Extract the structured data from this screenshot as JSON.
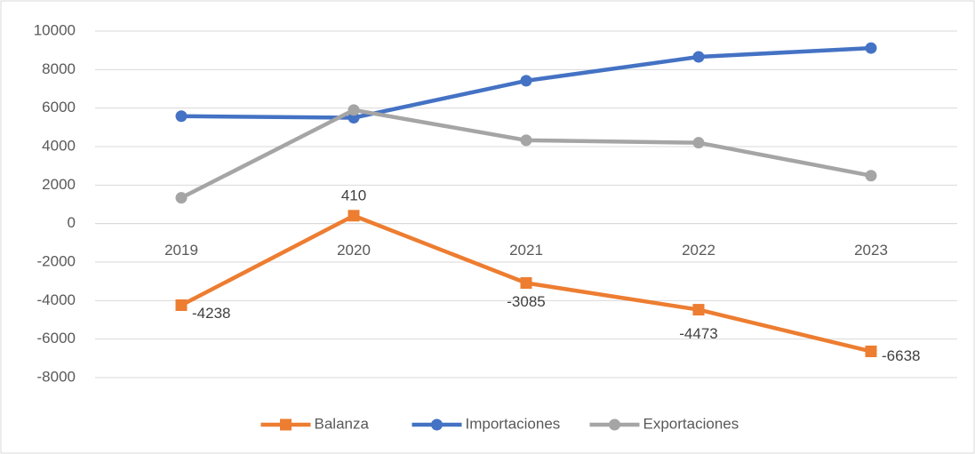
{
  "chart_data": {
    "type": "line",
    "categories": [
      "2019",
      "2020",
      "2021",
      "2022",
      "2023"
    ],
    "series": [
      {
        "name": "Balanza",
        "color": "#ed7d31",
        "marker": "square",
        "values": [
          -4238,
          410,
          -3085,
          -4473,
          -6638
        ]
      },
      {
        "name": "Importaciones",
        "color": "#4472c4",
        "marker": "circle",
        "values": [
          5580,
          5500,
          7420,
          8660,
          9120
        ]
      },
      {
        "name": "Exportaciones",
        "color": "#a5a5a5",
        "marker": "circle",
        "values": [
          1340,
          5900,
          4330,
          4200,
          2490
        ]
      }
    ],
    "data_labels_series": 0,
    "ylim": [
      -8000,
      10000
    ],
    "yticks": [
      -8000,
      -6000,
      -4000,
      -2000,
      0,
      2000,
      4000,
      6000,
      8000,
      10000
    ],
    "grid": true,
    "legend": "bottom"
  }
}
